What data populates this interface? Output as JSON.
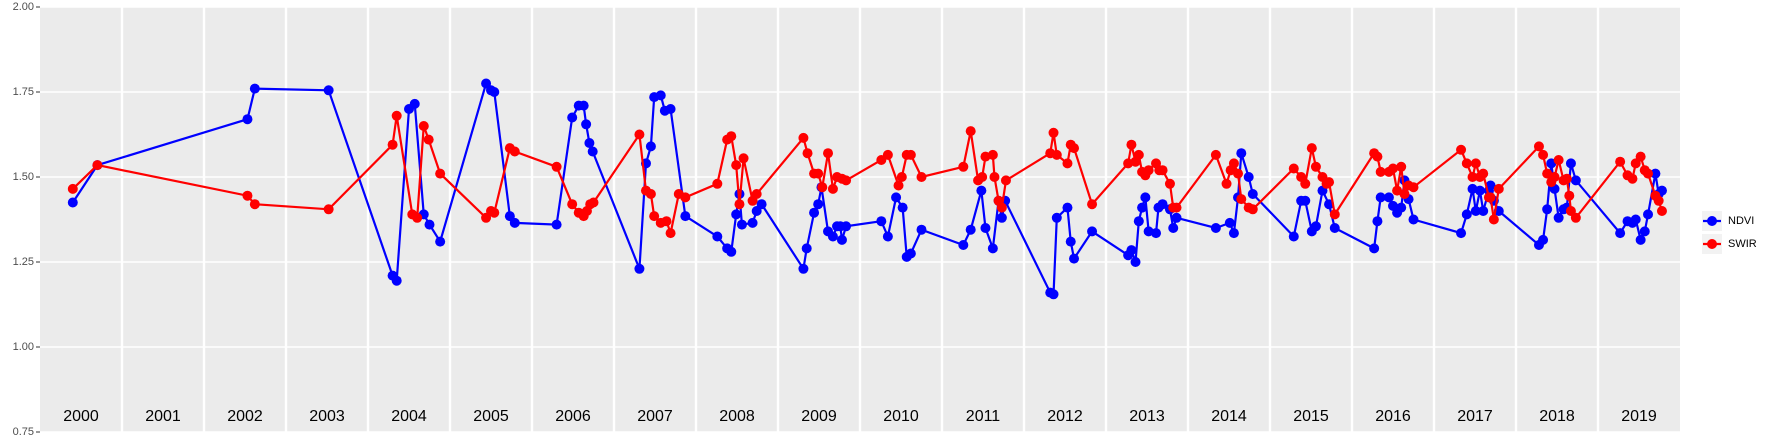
{
  "chart_data": {
    "type": "line",
    "xlim": [
      2000,
      2020
    ],
    "ylim": [
      0.75,
      2.0
    ],
    "yticks": [
      {
        "value": 0.75,
        "label": "0.75"
      },
      {
        "value": 1.0,
        "label": "1.00"
      },
      {
        "value": 1.25,
        "label": "1.25"
      },
      {
        "value": 1.5,
        "label": "1.50"
      },
      {
        "value": 1.75,
        "label": "1.75"
      },
      {
        "value": 2.0,
        "label": "2.00"
      }
    ],
    "xticks": [
      {
        "value": 2000.5,
        "label": "2000"
      },
      {
        "value": 2001.5,
        "label": "2001"
      },
      {
        "value": 2002.5,
        "label": "2002"
      },
      {
        "value": 2003.5,
        "label": "2003"
      },
      {
        "value": 2004.5,
        "label": "2004"
      },
      {
        "value": 2005.5,
        "label": "2005"
      },
      {
        "value": 2006.5,
        "label": "2006"
      },
      {
        "value": 2007.5,
        "label": "2007"
      },
      {
        "value": 2008.5,
        "label": "2008"
      },
      {
        "value": 2009.5,
        "label": "2009"
      },
      {
        "value": 2010.5,
        "label": "2010"
      },
      {
        "value": 2011.5,
        "label": "2011"
      },
      {
        "value": 2012.5,
        "label": "2012"
      },
      {
        "value": 2013.5,
        "label": "2013"
      },
      {
        "value": 2014.5,
        "label": "2014"
      },
      {
        "value": 2015.5,
        "label": "2015"
      },
      {
        "value": 2016.5,
        "label": "2016"
      },
      {
        "value": 2017.5,
        "label": "2017"
      },
      {
        "value": 2018.5,
        "label": "2018"
      },
      {
        "value": 2019.5,
        "label": "2019"
      }
    ],
    "xgrid": [
      2001,
      2002,
      2003,
      2004,
      2005,
      2006,
      2007,
      2008,
      2009,
      2010,
      2011,
      2012,
      2013,
      2014,
      2015,
      2016,
      2017,
      2018,
      2019
    ],
    "grid": true,
    "legend": "right",
    "series": [
      {
        "name": "NDVI",
        "color": "#0000ff",
        "x": [
          2000.4,
          2000.7,
          2002.53,
          2002.62,
          2003.52,
          2004.3,
          2004.35,
          2004.5,
          2004.57,
          2004.68,
          2004.75,
          2004.88,
          2005.44,
          2005.5,
          2005.54,
          2005.73,
          2005.79,
          2006.3,
          2006.49,
          2006.57,
          2006.63,
          2006.66,
          2006.7,
          2006.74,
          2007.31,
          2007.39,
          2007.45,
          2007.49,
          2007.57,
          2007.62,
          2007.69,
          2007.87,
          2008.26,
          2008.38,
          2008.43,
          2008.49,
          2008.53,
          2008.56,
          2008.69,
          2008.74,
          2008.8,
          2009.31,
          2009.35,
          2009.44,
          2009.49,
          2009.53,
          2009.61,
          2009.67,
          2009.72,
          2009.76,
          2009.78,
          2009.83,
          2010.26,
          2010.34,
          2010.44,
          2010.52,
          2010.57,
          2010.62,
          2010.75,
          2011.26,
          2011.35,
          2011.48,
          2011.53,
          2011.62,
          2011.69,
          2011.73,
          2011.77,
          2012.32,
          2012.36,
          2012.4,
          2012.53,
          2012.57,
          2012.61,
          2012.83,
          2013.27,
          2013.31,
          2013.36,
          2013.4,
          2013.44,
          2013.48,
          2013.52,
          2013.61,
          2013.64,
          2013.69,
          2013.78,
          2013.82,
          2013.86,
          2014.34,
          2014.51,
          2014.56,
          2014.61,
          2014.65,
          2014.74,
          2014.79,
          2015.29,
          2015.38,
          2015.43,
          2015.51,
          2015.56,
          2015.64,
          2015.72,
          2015.79,
          2016.27,
          2016.31,
          2016.35,
          2016.45,
          2016.5,
          2016.55,
          2016.6,
          2016.64,
          2016.69,
          2016.75,
          2017.33,
          2017.4,
          2017.47,
          2017.51,
          2017.56,
          2017.6,
          2017.67,
          2017.69,
          2017.73,
          2017.79,
          2018.28,
          2018.33,
          2018.38,
          2018.43,
          2018.47,
          2018.52,
          2018.58,
          2018.62,
          2018.67,
          2018.73,
          2019.27,
          2019.36,
          2019.42,
          2019.46,
          2019.52,
          2019.57,
          2019.61,
          2019.7,
          2019.74,
          2019.78
        ],
        "values": [
          1.425,
          1.535,
          1.67,
          1.76,
          1.755,
          1.21,
          1.195,
          1.7,
          1.715,
          1.39,
          1.36,
          1.31,
          1.775,
          1.755,
          1.75,
          1.385,
          1.365,
          1.36,
          1.675,
          1.71,
          1.71,
          1.655,
          1.6,
          1.575,
          1.23,
          1.54,
          1.59,
          1.735,
          1.74,
          1.695,
          1.7,
          1.385,
          1.325,
          1.29,
          1.28,
          1.39,
          1.45,
          1.36,
          1.365,
          1.4,
          1.42,
          1.23,
          1.29,
          1.395,
          1.42,
          1.47,
          1.34,
          1.325,
          1.355,
          1.355,
          1.315,
          1.355,
          1.37,
          1.325,
          1.44,
          1.41,
          1.265,
          1.275,
          1.345,
          1.3,
          1.345,
          1.46,
          1.35,
          1.29,
          1.43,
          1.38,
          1.43,
          1.16,
          1.155,
          1.38,
          1.41,
          1.31,
          1.26,
          1.34,
          1.27,
          1.285,
          1.25,
          1.37,
          1.41,
          1.44,
          1.34,
          1.335,
          1.41,
          1.42,
          1.405,
          1.35,
          1.38,
          1.35,
          1.365,
          1.335,
          1.44,
          1.57,
          1.5,
          1.45,
          1.325,
          1.43,
          1.43,
          1.34,
          1.355,
          1.46,
          1.42,
          1.35,
          1.29,
          1.37,
          1.44,
          1.44,
          1.415,
          1.395,
          1.41,
          1.49,
          1.435,
          1.375,
          1.335,
          1.39,
          1.465,
          1.4,
          1.46,
          1.4,
          1.46,
          1.475,
          1.43,
          1.4,
          1.3,
          1.315,
          1.405,
          1.54,
          1.465,
          1.38,
          1.405,
          1.41,
          1.54,
          1.49,
          1.335,
          1.37,
          1.365,
          1.375,
          1.315,
          1.34,
          1.39,
          1.51,
          1.45,
          1.46
        ]
      },
      {
        "name": "SWIR",
        "color": "#ff0000",
        "x": [
          2000.4,
          2000.7,
          2002.53,
          2002.62,
          2003.52,
          2004.3,
          2004.35,
          2004.54,
          2004.6,
          2004.68,
          2004.74,
          2004.88,
          2005.44,
          2005.5,
          2005.54,
          2005.73,
          2005.79,
          2006.3,
          2006.49,
          2006.57,
          2006.63,
          2006.67,
          2006.71,
          2006.75,
          2007.31,
          2007.39,
          2007.45,
          2007.49,
          2007.57,
          2007.64,
          2007.69,
          2007.79,
          2007.87,
          2008.26,
          2008.38,
          2008.43,
          2008.49,
          2008.53,
          2008.58,
          2008.69,
          2008.74,
          2009.31,
          2009.36,
          2009.44,
          2009.49,
          2009.54,
          2009.61,
          2009.67,
          2009.72,
          2009.78,
          2009.83,
          2010.26,
          2010.34,
          2010.47,
          2010.51,
          2010.57,
          2010.62,
          2010.75,
          2011.26,
          2011.35,
          2011.44,
          2011.49,
          2011.53,
          2011.62,
          2011.64,
          2011.69,
          2011.73,
          2011.78,
          2012.32,
          2012.36,
          2012.4,
          2012.53,
          2012.57,
          2012.61,
          2012.83,
          2013.27,
          2013.31,
          2013.36,
          2013.4,
          2013.44,
          2013.48,
          2013.52,
          2013.61,
          2013.65,
          2013.69,
          2013.78,
          2013.82,
          2013.86,
          2014.34,
          2014.47,
          2014.52,
          2014.56,
          2014.61,
          2014.65,
          2014.74,
          2014.79,
          2015.29,
          2015.38,
          2015.43,
          2015.51,
          2015.56,
          2015.64,
          2015.69,
          2015.72,
          2015.79,
          2016.27,
          2016.31,
          2016.35,
          2016.45,
          2016.5,
          2016.55,
          2016.6,
          2016.64,
          2016.69,
          2016.75,
          2017.33,
          2017.4,
          2017.47,
          2017.51,
          2017.56,
          2017.6,
          2017.67,
          2017.69,
          2017.73,
          2017.79,
          2018.28,
          2018.33,
          2018.38,
          2018.43,
          2018.47,
          2018.52,
          2018.58,
          2018.62,
          2018.65,
          2018.67,
          2018.73,
          2019.27,
          2019.36,
          2019.42,
          2019.46,
          2019.52,
          2019.57,
          2019.61,
          2019.7,
          2019.74,
          2019.78
        ],
        "values": [
          1.465,
          1.535,
          1.445,
          1.42,
          1.405,
          1.595,
          1.68,
          1.39,
          1.38,
          1.65,
          1.61,
          1.51,
          1.38,
          1.4,
          1.395,
          1.585,
          1.575,
          1.53,
          1.42,
          1.395,
          1.385,
          1.4,
          1.42,
          1.425,
          1.625,
          1.46,
          1.45,
          1.385,
          1.365,
          1.37,
          1.335,
          1.45,
          1.44,
          1.48,
          1.61,
          1.62,
          1.535,
          1.42,
          1.555,
          1.43,
          1.45,
          1.615,
          1.57,
          1.51,
          1.51,
          1.47,
          1.57,
          1.465,
          1.5,
          1.495,
          1.49,
          1.55,
          1.565,
          1.475,
          1.5,
          1.565,
          1.565,
          1.5,
          1.53,
          1.635,
          1.49,
          1.5,
          1.56,
          1.565,
          1.5,
          1.43,
          1.41,
          1.49,
          1.57,
          1.63,
          1.565,
          1.54,
          1.595,
          1.585,
          1.42,
          1.54,
          1.595,
          1.545,
          1.565,
          1.515,
          1.505,
          1.52,
          1.54,
          1.52,
          1.52,
          1.48,
          1.41,
          1.41,
          1.565,
          1.48,
          1.52,
          1.54,
          1.51,
          1.435,
          1.41,
          1.405,
          1.525,
          1.5,
          1.48,
          1.585,
          1.53,
          1.5,
          1.48,
          1.485,
          1.39,
          1.57,
          1.56,
          1.515,
          1.515,
          1.525,
          1.46,
          1.53,
          1.45,
          1.475,
          1.47,
          1.58,
          1.54,
          1.5,
          1.54,
          1.5,
          1.51,
          1.44,
          1.44,
          1.375,
          1.465,
          1.59,
          1.565,
          1.51,
          1.485,
          1.5,
          1.55,
          1.49,
          1.495,
          1.445,
          1.4,
          1.38,
          1.545,
          1.505,
          1.495,
          1.54,
          1.56,
          1.52,
          1.51,
          1.445,
          1.43,
          1.4
        ]
      }
    ]
  }
}
